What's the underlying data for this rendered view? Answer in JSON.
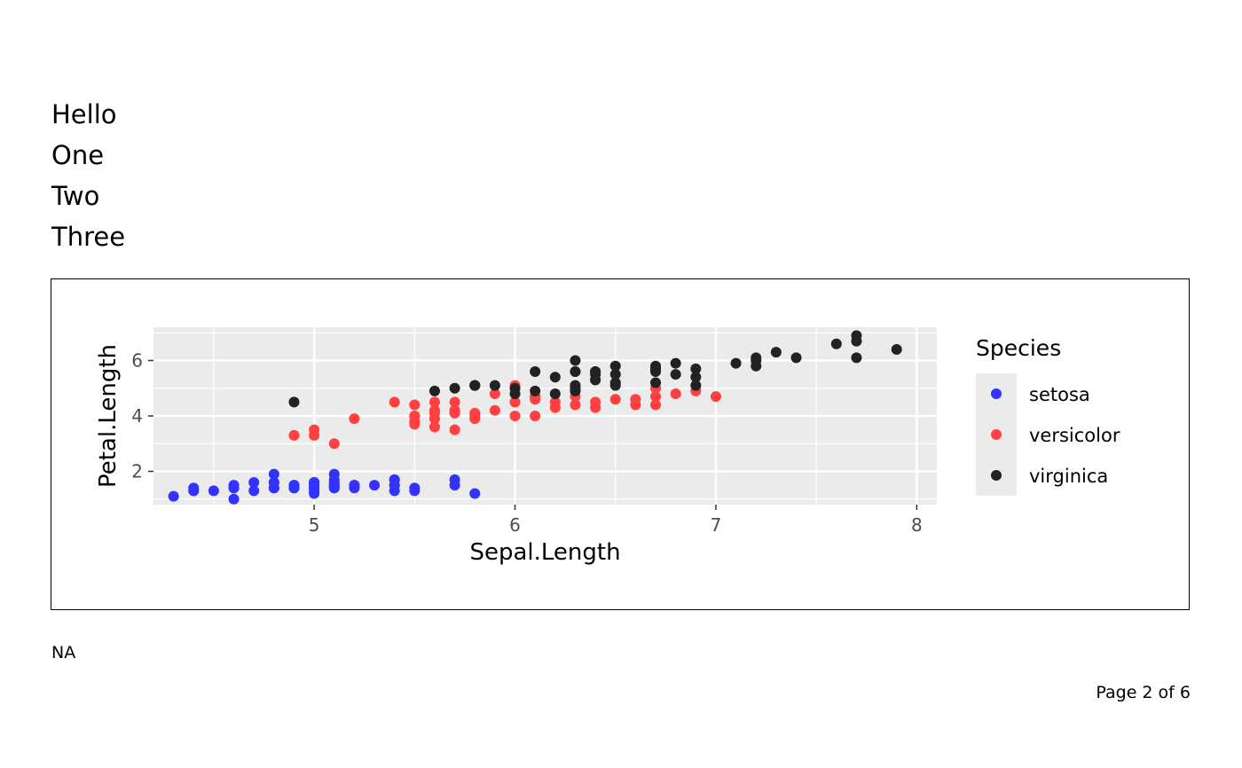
{
  "heading_lines": [
    "Hello",
    "One",
    "Two",
    "Three"
  ],
  "footnote": "NA",
  "page_number": "Page 2 of 6",
  "chart_data": {
    "type": "scatter",
    "xlabel": "Sepal.Length",
    "ylabel": "Petal.Length",
    "xlim": [
      4.2,
      8.1
    ],
    "ylim": [
      0.8,
      7.2
    ],
    "x_ticks": [
      5,
      6,
      7,
      8
    ],
    "y_ticks": [
      2,
      4,
      6
    ],
    "grid": true,
    "legend": {
      "title": "Species",
      "position": "right"
    },
    "series": [
      {
        "name": "setosa",
        "color": "#3333ff",
        "points": [
          [
            5.1,
            1.4
          ],
          [
            4.9,
            1.4
          ],
          [
            4.7,
            1.3
          ],
          [
            4.6,
            1.5
          ],
          [
            5.0,
            1.4
          ],
          [
            5.4,
            1.7
          ],
          [
            4.6,
            1.4
          ],
          [
            5.0,
            1.5
          ],
          [
            4.4,
            1.4
          ],
          [
            4.9,
            1.5
          ],
          [
            5.4,
            1.5
          ],
          [
            4.8,
            1.6
          ],
          [
            4.8,
            1.4
          ],
          [
            4.3,
            1.1
          ],
          [
            5.8,
            1.2
          ],
          [
            5.7,
            1.5
          ],
          [
            5.4,
            1.3
          ],
          [
            5.1,
            1.4
          ],
          [
            5.7,
            1.7
          ],
          [
            5.1,
            1.5
          ],
          [
            5.4,
            1.7
          ],
          [
            5.1,
            1.5
          ],
          [
            4.6,
            1.0
          ],
          [
            5.1,
            1.7
          ],
          [
            4.8,
            1.9
          ],
          [
            5.0,
            1.6
          ],
          [
            5.0,
            1.6
          ],
          [
            5.2,
            1.5
          ],
          [
            5.2,
            1.4
          ],
          [
            4.7,
            1.6
          ],
          [
            4.8,
            1.6
          ],
          [
            5.4,
            1.5
          ],
          [
            5.2,
            1.5
          ],
          [
            5.5,
            1.4
          ],
          [
            4.9,
            1.5
          ],
          [
            5.0,
            1.2
          ],
          [
            5.5,
            1.3
          ],
          [
            4.9,
            1.4
          ],
          [
            4.4,
            1.3
          ],
          [
            5.1,
            1.5
          ],
          [
            5.0,
            1.3
          ],
          [
            4.5,
            1.3
          ],
          [
            4.4,
            1.3
          ],
          [
            5.0,
            1.6
          ],
          [
            5.1,
            1.9
          ],
          [
            4.8,
            1.4
          ],
          [
            5.1,
            1.6
          ],
          [
            4.6,
            1.4
          ],
          [
            5.3,
            1.5
          ],
          [
            5.0,
            1.4
          ]
        ]
      },
      {
        "name": "versicolor",
        "color": "#ff4040",
        "points": [
          [
            7.0,
            4.7
          ],
          [
            6.4,
            4.5
          ],
          [
            6.9,
            4.9
          ],
          [
            5.5,
            4.0
          ],
          [
            6.5,
            4.6
          ],
          [
            5.7,
            4.5
          ],
          [
            6.3,
            4.7
          ],
          [
            4.9,
            3.3
          ],
          [
            6.6,
            4.6
          ],
          [
            5.2,
            3.9
          ],
          [
            5.0,
            3.5
          ],
          [
            5.9,
            4.2
          ],
          [
            6.0,
            4.0
          ],
          [
            6.1,
            4.7
          ],
          [
            5.6,
            3.6
          ],
          [
            6.7,
            4.4
          ],
          [
            5.6,
            4.5
          ],
          [
            5.8,
            4.1
          ],
          [
            6.2,
            4.5
          ],
          [
            5.6,
            3.9
          ],
          [
            5.9,
            4.8
          ],
          [
            6.1,
            4.0
          ],
          [
            6.3,
            4.9
          ],
          [
            6.1,
            4.7
          ],
          [
            6.4,
            4.3
          ],
          [
            6.6,
            4.4
          ],
          [
            6.8,
            4.8
          ],
          [
            6.7,
            5.0
          ],
          [
            6.0,
            4.5
          ],
          [
            5.7,
            3.5
          ],
          [
            5.5,
            3.8
          ],
          [
            5.5,
            3.7
          ],
          [
            5.8,
            3.9
          ],
          [
            6.0,
            5.1
          ],
          [
            5.4,
            4.5
          ],
          [
            6.0,
            4.5
          ],
          [
            6.7,
            4.7
          ],
          [
            6.3,
            4.4
          ],
          [
            5.6,
            4.1
          ],
          [
            5.5,
            4.0
          ],
          [
            5.5,
            4.4
          ],
          [
            6.1,
            4.6
          ],
          [
            5.8,
            4.0
          ],
          [
            5.0,
            3.3
          ],
          [
            5.6,
            4.2
          ],
          [
            5.7,
            4.2
          ],
          [
            5.7,
            4.2
          ],
          [
            6.2,
            4.3
          ],
          [
            5.1,
            3.0
          ],
          [
            5.7,
            4.1
          ]
        ]
      },
      {
        "name": "virginica",
        "color": "#222222",
        "points": [
          [
            6.3,
            6.0
          ],
          [
            5.8,
            5.1
          ],
          [
            7.1,
            5.9
          ],
          [
            6.3,
            5.6
          ],
          [
            6.5,
            5.8
          ],
          [
            7.6,
            6.6
          ],
          [
            4.9,
            4.5
          ],
          [
            7.3,
            6.3
          ],
          [
            6.7,
            5.8
          ],
          [
            7.2,
            6.1
          ],
          [
            6.5,
            5.1
          ],
          [
            6.4,
            5.3
          ],
          [
            6.8,
            5.5
          ],
          [
            5.7,
            5.0
          ],
          [
            5.8,
            5.1
          ],
          [
            6.4,
            5.3
          ],
          [
            6.5,
            5.5
          ],
          [
            7.7,
            6.7
          ],
          [
            7.7,
            6.9
          ],
          [
            6.0,
            5.0
          ],
          [
            6.9,
            5.7
          ],
          [
            5.6,
            4.9
          ],
          [
            7.7,
            6.7
          ],
          [
            6.3,
            4.9
          ],
          [
            6.7,
            5.7
          ],
          [
            7.2,
            6.0
          ],
          [
            6.2,
            4.8
          ],
          [
            6.1,
            4.9
          ],
          [
            6.4,
            5.6
          ],
          [
            7.2,
            5.8
          ],
          [
            7.4,
            6.1
          ],
          [
            7.9,
            6.4
          ],
          [
            6.4,
            5.6
          ],
          [
            6.3,
            5.1
          ],
          [
            6.1,
            5.6
          ],
          [
            7.7,
            6.1
          ],
          [
            6.3,
            5.6
          ],
          [
            6.4,
            5.5
          ],
          [
            6.0,
            4.8
          ],
          [
            6.9,
            5.4
          ],
          [
            6.7,
            5.6
          ],
          [
            6.9,
            5.1
          ],
          [
            5.8,
            5.1
          ],
          [
            6.8,
            5.9
          ],
          [
            6.7,
            5.7
          ],
          [
            6.7,
            5.2
          ],
          [
            6.3,
            5.0
          ],
          [
            6.5,
            5.2
          ],
          [
            6.2,
            5.4
          ],
          [
            5.9,
            5.1
          ]
        ]
      }
    ]
  }
}
